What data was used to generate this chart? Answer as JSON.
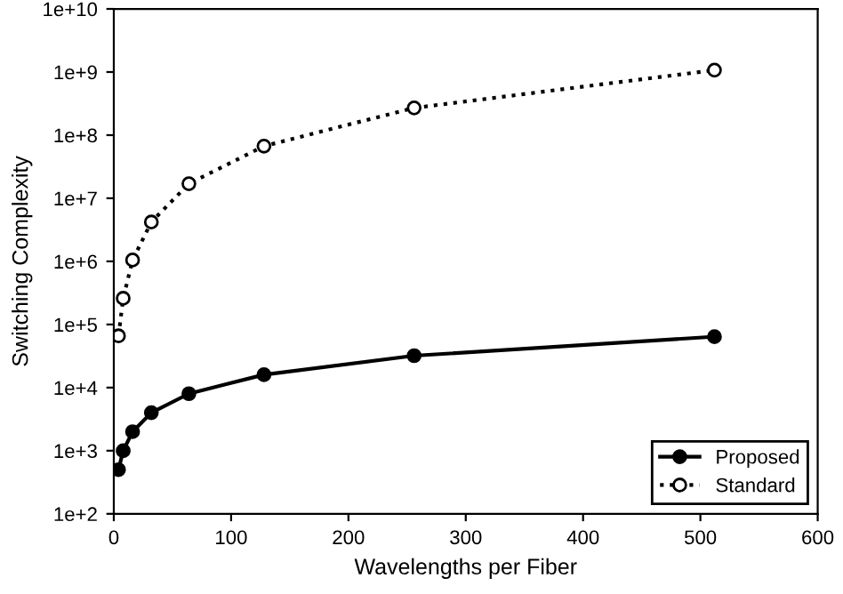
{
  "chart_data": {
    "type": "line",
    "xlabel": "Wavelengths per Fiber",
    "ylabel": "Switching Complexity",
    "x": [
      4,
      8,
      16,
      32,
      64,
      128,
      256,
      512
    ],
    "series": [
      {
        "name": "Proposed",
        "color": "#000000",
        "marker": "circle",
        "line_style": "solid",
        "values": [
          500,
          1000,
          2000,
          4000,
          8000,
          16000,
          32000,
          64000
        ]
      },
      {
        "name": "Standard",
        "color": "#000000",
        "marker": "circle",
        "line_style": "dotted",
        "values": [
          66000,
          260000,
          1050000,
          4200000,
          17000000,
          67000000,
          270000000,
          1070000000
        ]
      }
    ],
    "log": "y",
    "xlim": [
      0,
      600
    ],
    "xticks": [
      0,
      100,
      200,
      300,
      400,
      500,
      600
    ],
    "ylim": [
      100,
      10000000000
    ],
    "yticks": [
      {
        "value": 100,
        "label": "1e+2"
      },
      {
        "value": 1000,
        "label": "1e+3"
      },
      {
        "value": 10000,
        "label": "1e+4"
      },
      {
        "value": 100000,
        "label": "1e+5"
      },
      {
        "value": 1000000,
        "label": "1e+6"
      },
      {
        "value": 10000000,
        "label": "1e+7"
      },
      {
        "value": 100000000,
        "label": "1e+8"
      },
      {
        "value": 1000000000,
        "label": "1e+9"
      },
      {
        "value": 10000000000,
        "label": "1e+10"
      }
    ],
    "grid": false,
    "legend": "bottom right"
  }
}
